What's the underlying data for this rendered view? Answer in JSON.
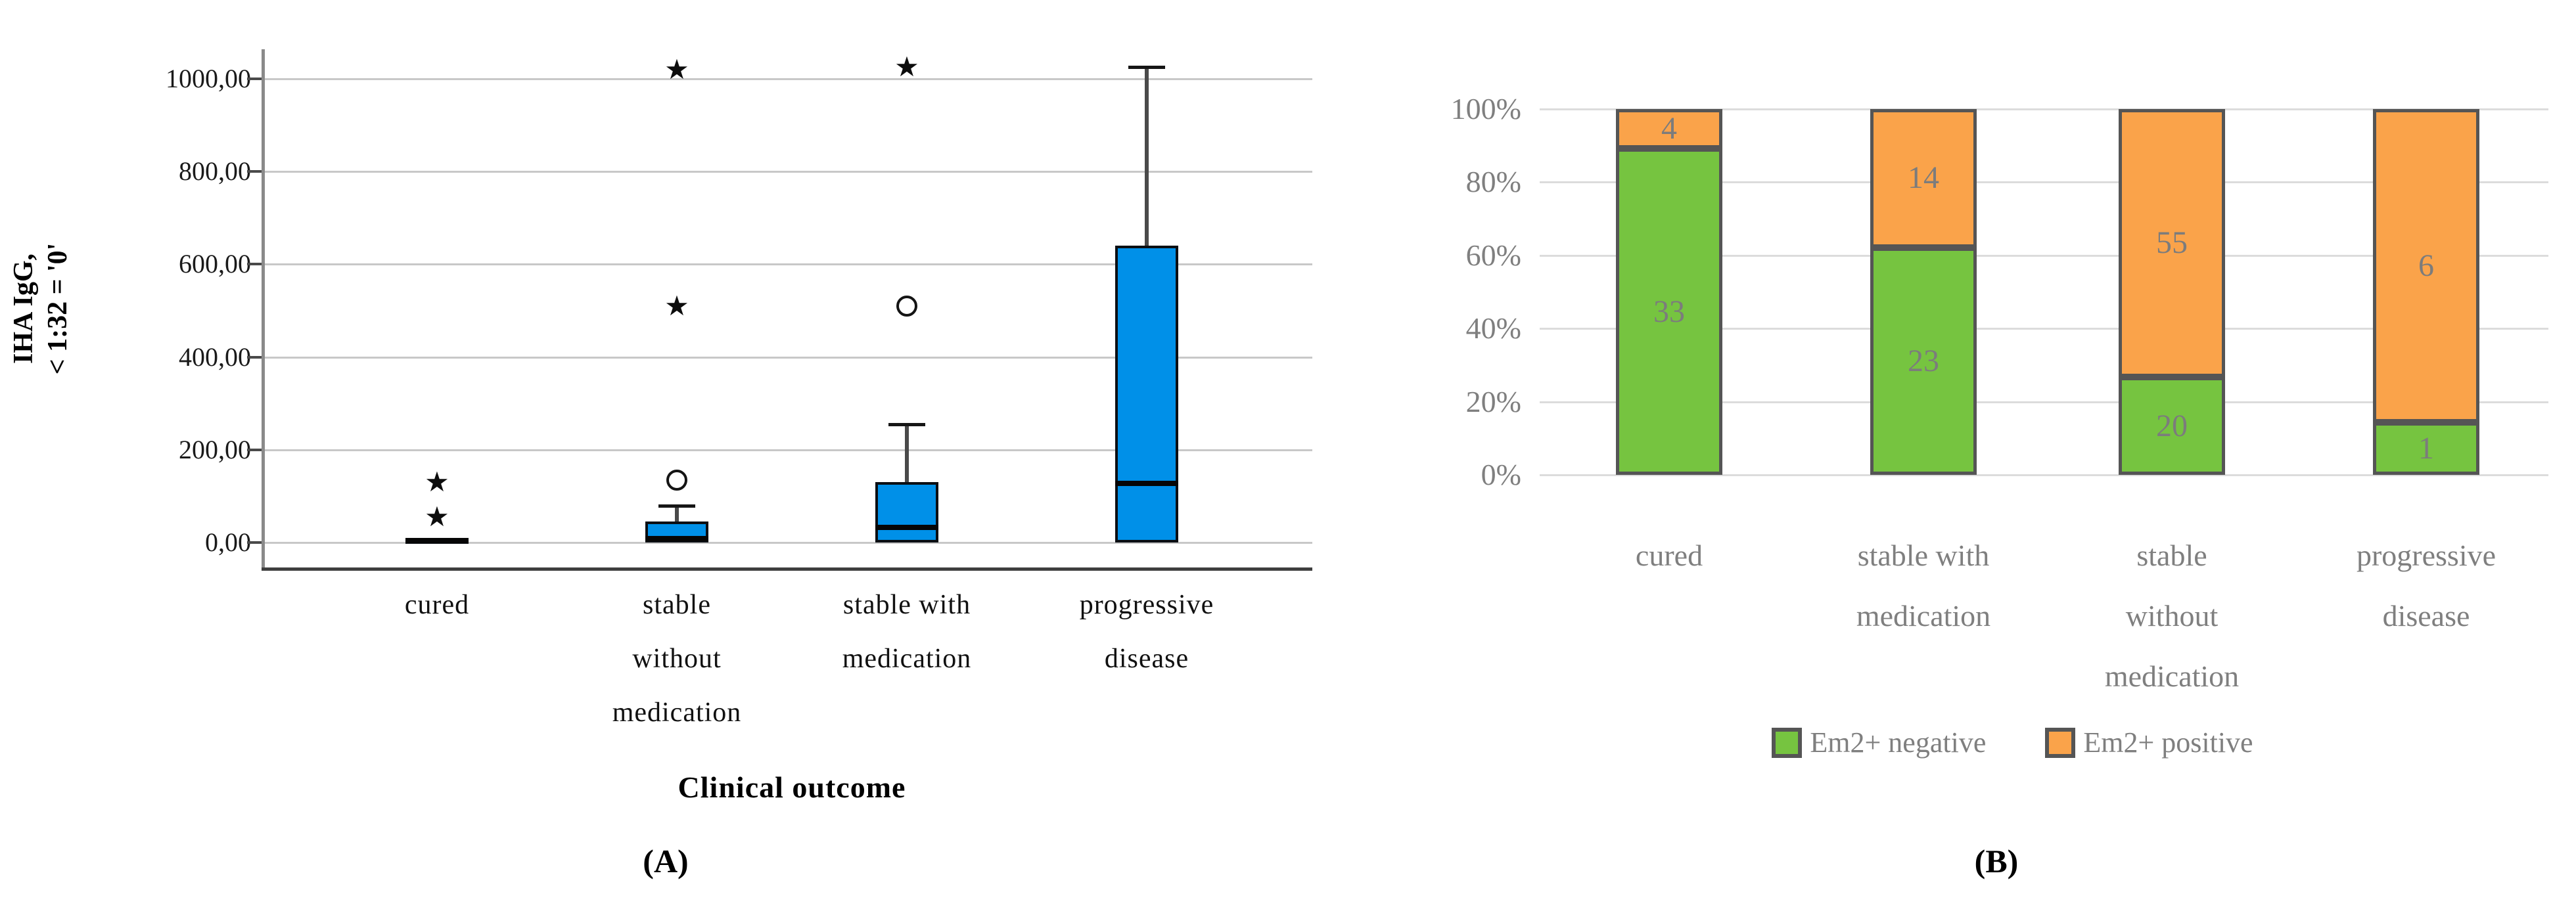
{
  "colors": {
    "box_blue": "#0090e8",
    "green": "#76c440",
    "orange": "#faa34a",
    "bar_border": "#555555",
    "grid_a": "#c8c8c8",
    "grid_b": "#dcdcdc",
    "axis_vertical_gray": "#8a8a8a",
    "axis_bottom_dark": "#3f3f3f",
    "text_dark": "#1a1a1a",
    "text_gray": "#7f7f7f"
  },
  "chart_data": [
    {
      "id": "A",
      "type": "boxplot",
      "panel_label": "(A)",
      "xlabel": "Clinical outcome",
      "ylabel_lines": [
        "IHA IgG,",
        "< 1:32 = '0'"
      ],
      "ylim": [
        0,
        1060
      ],
      "grid": true,
      "ytick_values": [
        1000,
        800,
        600,
        400,
        200,
        0
      ],
      "ytick_labels": [
        "1000,00",
        "800,00",
        "600,00",
        "400,00",
        "200,00",
        "0,00"
      ],
      "box_fill": "#0090e8",
      "categories": [
        {
          "label_lines": [
            "cured"
          ],
          "q1": 0,
          "median": 4,
          "q3": 8,
          "whisker_high": null,
          "outliers": [
            {
              "marker": "star",
              "value": 55
            },
            {
              "marker": "star",
              "value": 130
            }
          ]
        },
        {
          "label_lines": [
            "stable",
            "without",
            "medication"
          ],
          "q1": 0,
          "median": 8,
          "q3": 45,
          "whisker_high": 80,
          "outliers": [
            {
              "marker": "circle",
              "value": 135
            },
            {
              "marker": "star",
              "value": 510
            },
            {
              "marker": "star",
              "value": 1020
            }
          ]
        },
        {
          "label_lines": [
            "stable with",
            "medication"
          ],
          "q1": 0,
          "median": 32,
          "q3": 130,
          "whisker_high": 255,
          "outliers": [
            {
              "marker": "circle",
              "value": 510
            },
            {
              "marker": "star",
              "value": 1025
            }
          ]
        },
        {
          "label_lines": [
            "progressive",
            "disease"
          ],
          "q1": 0,
          "median": 127,
          "q3": 640,
          "whisker_high": 1025,
          "outliers": []
        }
      ]
    },
    {
      "id": "B",
      "type": "stacked-bar-100",
      "panel_label": "(B)",
      "grid": true,
      "ytick_values": [
        100,
        80,
        60,
        40,
        20,
        0
      ],
      "ytick_labels": [
        "100%",
        "80%",
        "60%",
        "40%",
        "20%",
        "0%"
      ],
      "categories": [
        {
          "label_lines": [
            "cured"
          ]
        },
        {
          "label_lines": [
            "stable with",
            "medication"
          ]
        },
        {
          "label_lines": [
            "stable",
            "without",
            "medication"
          ]
        },
        {
          "label_lines": [
            "progressive",
            "disease"
          ]
        }
      ],
      "series": [
        {
          "name": "Em2+ negative",
          "color_key": "green",
          "values": [
            33,
            23,
            20,
            1
          ]
        },
        {
          "name": "Em2+ positive",
          "color_key": "orange",
          "values": [
            4,
            14,
            55,
            6
          ]
        }
      ]
    }
  ],
  "legend": {
    "items": [
      {
        "label": "Em2+ negative",
        "color_key": "green"
      },
      {
        "label": "Em2+ positive",
        "color_key": "orange"
      }
    ]
  }
}
